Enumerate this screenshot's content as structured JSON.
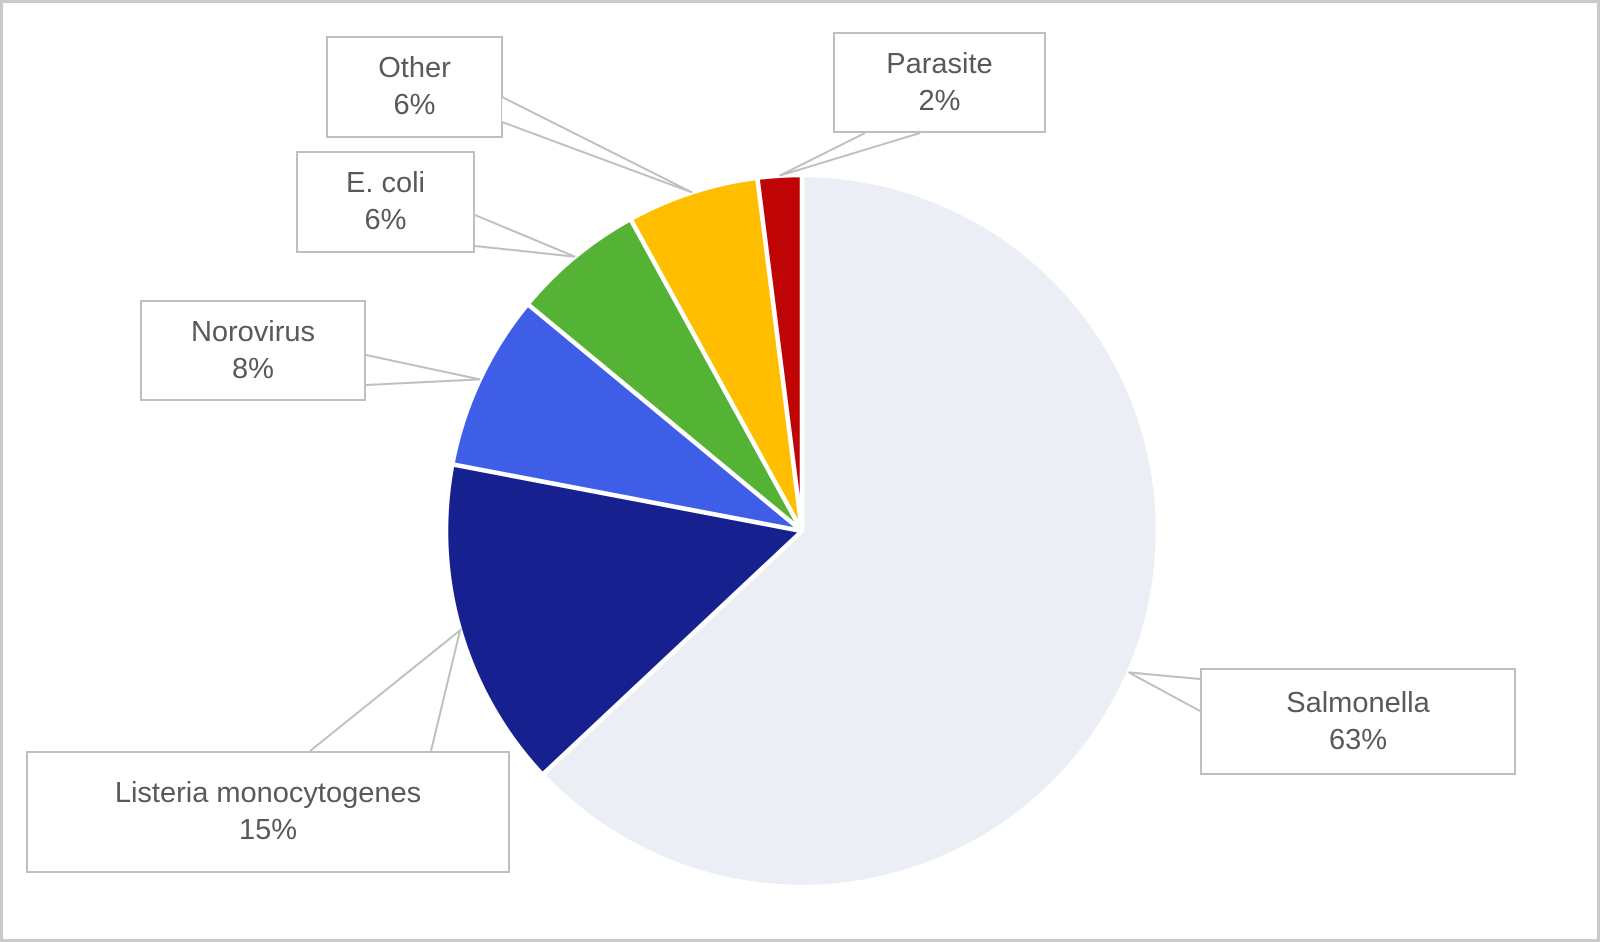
{
  "chart_data": {
    "type": "pie",
    "title": "",
    "start_angle_deg": 0,
    "direction": "clockwise",
    "legend_position": "none",
    "labels_style": "callout-boxes-with-leader-lines",
    "slices": [
      {
        "label": "Salmonella",
        "pct": 63,
        "pct_label": "63%",
        "color": "#ebeef4"
      },
      {
        "label": "Listeria monocytogenes",
        "pct": 15,
        "pct_label": "15%",
        "color": "#16218f"
      },
      {
        "label": "Norovirus",
        "pct": 8,
        "pct_label": "8%",
        "color": "#3f5ee8"
      },
      {
        "label": "E. coli",
        "pct": 6,
        "pct_label": "6%",
        "color": "#54b234"
      },
      {
        "label": "Other",
        "pct": 6,
        "pct_label": "6%",
        "color": "#ffbe00"
      },
      {
        "label": "Parasite",
        "pct": 2,
        "pct_label": "2%",
        "color": "#be0405"
      }
    ],
    "slice_border_color": "#ffffff",
    "callout_border_color": "#bfbfbf",
    "callout_fill_color": "#ffffff",
    "text_color": "#595959",
    "background_color": "#ffffff",
    "frame_border_color": "#c9c9c9"
  }
}
